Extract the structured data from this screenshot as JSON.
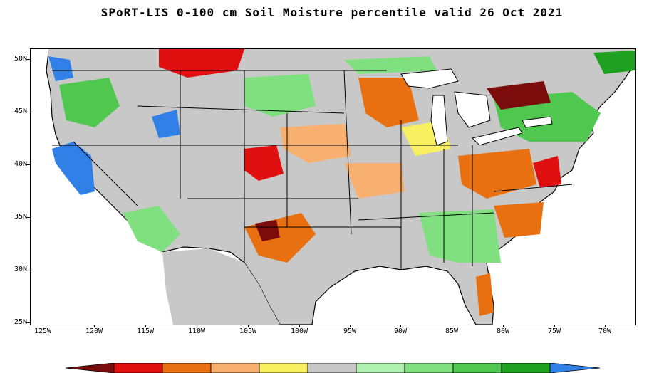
{
  "title": "SPoRT-LIS 0-100 cm Soil Moisture percentile valid 26 Oct 2021",
  "latitude_labels": [
    "50N",
    "45N",
    "40N",
    "35N",
    "30N",
    "25N"
  ],
  "longitude_labels": [
    "125W",
    "120W",
    "115W",
    "110W",
    "105W",
    "100W",
    "95W",
    "90W",
    "85W",
    "80W",
    "75W",
    "70W"
  ],
  "colors": {
    "category_colors": [
      "#7a0c0c",
      "#e01010",
      "#e87010",
      "#f8b070",
      "#f8f060",
      "#c8c8c8",
      "#b0f0b0",
      "#80e080",
      "#50c850",
      "#20a020",
      "#3080e8"
    ],
    "water": "#ffffff",
    "border": "#000000"
  },
  "features": {
    "land_background": "gray near-normal soil moisture",
    "great_lakes": "white water bodies",
    "state_boundaries": "black lines"
  }
}
